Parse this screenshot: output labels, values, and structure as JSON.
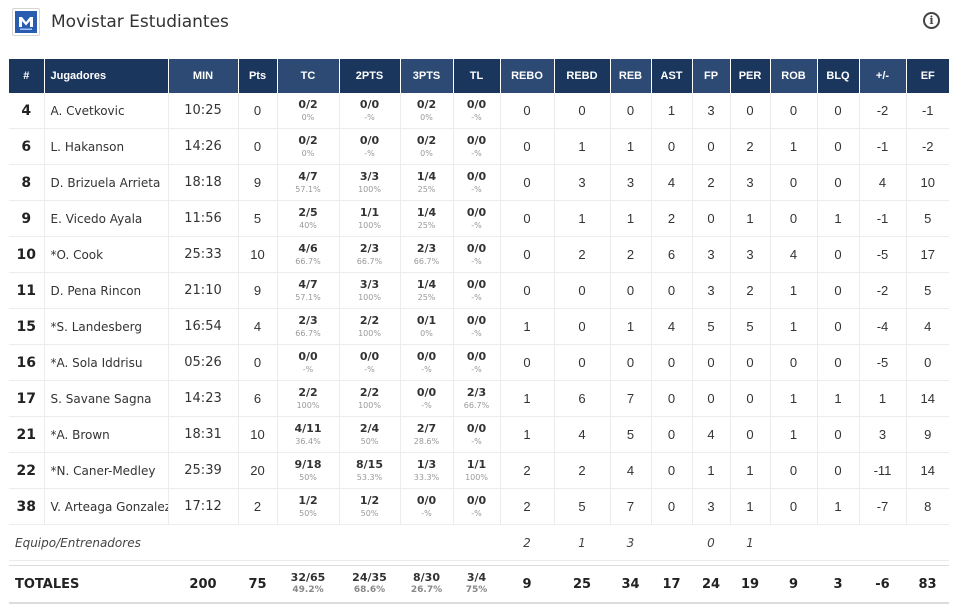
{
  "team": {
    "name": "Movistar Estudiantes",
    "logo_icon": "movistar-logo-icon",
    "info_icon": "info-icon",
    "brand_color": "#1b365d"
  },
  "columns": [
    "#",
    "Jugadores",
    "MIN",
    "Pts",
    "TC",
    "2PTS",
    "3PTS",
    "TL",
    "REBO",
    "REBD",
    "REB",
    "AST",
    "FP",
    "PER",
    "ROB",
    "BLQ",
    "+/-",
    "EF"
  ],
  "players": [
    {
      "num": "4",
      "name": "A. Cvetkovic",
      "min": "10:25",
      "pts": "0",
      "tc": {
        "m": "0/2",
        "p": "0%"
      },
      "p2": {
        "m": "0/0",
        "p": "-%"
      },
      "p3": {
        "m": "0/2",
        "p": "0%"
      },
      "tl": {
        "m": "0/0",
        "p": "-%"
      },
      "rebo": "0",
      "rebd": "0",
      "reb": "0",
      "ast": "1",
      "fp": "3",
      "per": "0",
      "rob": "0",
      "blq": "0",
      "pm": "-2",
      "ef": "-1"
    },
    {
      "num": "6",
      "name": "L. Hakanson",
      "min": "14:26",
      "pts": "0",
      "tc": {
        "m": "0/2",
        "p": "0%"
      },
      "p2": {
        "m": "0/0",
        "p": "-%"
      },
      "p3": {
        "m": "0/2",
        "p": "0%"
      },
      "tl": {
        "m": "0/0",
        "p": "-%"
      },
      "rebo": "0",
      "rebd": "1",
      "reb": "1",
      "ast": "0",
      "fp": "0",
      "per": "2",
      "rob": "1",
      "blq": "0",
      "pm": "-1",
      "ef": "-2"
    },
    {
      "num": "8",
      "name": "D. Brizuela Arrieta",
      "min": "18:18",
      "pts": "9",
      "tc": {
        "m": "4/7",
        "p": "57.1%"
      },
      "p2": {
        "m": "3/3",
        "p": "100%"
      },
      "p3": {
        "m": "1/4",
        "p": "25%"
      },
      "tl": {
        "m": "0/0",
        "p": "-%"
      },
      "rebo": "0",
      "rebd": "3",
      "reb": "3",
      "ast": "4",
      "fp": "2",
      "per": "3",
      "rob": "0",
      "blq": "0",
      "pm": "4",
      "ef": "10"
    },
    {
      "num": "9",
      "name": "E. Vicedo Ayala",
      "min": "11:56",
      "pts": "5",
      "tc": {
        "m": "2/5",
        "p": "40%"
      },
      "p2": {
        "m": "1/1",
        "p": "100%"
      },
      "p3": {
        "m": "1/4",
        "p": "25%"
      },
      "tl": {
        "m": "0/0",
        "p": "-%"
      },
      "rebo": "0",
      "rebd": "1",
      "reb": "1",
      "ast": "2",
      "fp": "0",
      "per": "1",
      "rob": "0",
      "blq": "1",
      "pm": "-1",
      "ef": "5"
    },
    {
      "num": "10",
      "name": "*O. Cook",
      "min": "25:33",
      "pts": "10",
      "tc": {
        "m": "4/6",
        "p": "66.7%"
      },
      "p2": {
        "m": "2/3",
        "p": "66.7%"
      },
      "p3": {
        "m": "2/3",
        "p": "66.7%"
      },
      "tl": {
        "m": "0/0",
        "p": "-%"
      },
      "rebo": "0",
      "rebd": "2",
      "reb": "2",
      "ast": "6",
      "fp": "3",
      "per": "3",
      "rob": "4",
      "blq": "0",
      "pm": "-5",
      "ef": "17"
    },
    {
      "num": "11",
      "name": "D. Pena Rincon",
      "min": "21:10",
      "pts": "9",
      "tc": {
        "m": "4/7",
        "p": "57.1%"
      },
      "p2": {
        "m": "3/3",
        "p": "100%"
      },
      "p3": {
        "m": "1/4",
        "p": "25%"
      },
      "tl": {
        "m": "0/0",
        "p": "-%"
      },
      "rebo": "0",
      "rebd": "0",
      "reb": "0",
      "ast": "0",
      "fp": "3",
      "per": "2",
      "rob": "1",
      "blq": "0",
      "pm": "-2",
      "ef": "5"
    },
    {
      "num": "15",
      "name": "*S. Landesberg",
      "min": "16:54",
      "pts": "4",
      "tc": {
        "m": "2/3",
        "p": "66.7%"
      },
      "p2": {
        "m": "2/2",
        "p": "100%"
      },
      "p3": {
        "m": "0/1",
        "p": "0%"
      },
      "tl": {
        "m": "0/0",
        "p": "-%"
      },
      "rebo": "1",
      "rebd": "0",
      "reb": "1",
      "ast": "4",
      "fp": "5",
      "per": "5",
      "rob": "1",
      "blq": "0",
      "pm": "-4",
      "ef": "4"
    },
    {
      "num": "16",
      "name": "*A. Sola Iddrisu",
      "min": "05:26",
      "pts": "0",
      "tc": {
        "m": "0/0",
        "p": "-%"
      },
      "p2": {
        "m": "0/0",
        "p": "-%"
      },
      "p3": {
        "m": "0/0",
        "p": "-%"
      },
      "tl": {
        "m": "0/0",
        "p": "-%"
      },
      "rebo": "0",
      "rebd": "0",
      "reb": "0",
      "ast": "0",
      "fp": "0",
      "per": "0",
      "rob": "0",
      "blq": "0",
      "pm": "-5",
      "ef": "0"
    },
    {
      "num": "17",
      "name": "S. Savane Sagna",
      "min": "14:23",
      "pts": "6",
      "tc": {
        "m": "2/2",
        "p": "100%"
      },
      "p2": {
        "m": "2/2",
        "p": "100%"
      },
      "p3": {
        "m": "0/0",
        "p": "-%"
      },
      "tl": {
        "m": "2/3",
        "p": "66.7%"
      },
      "rebo": "1",
      "rebd": "6",
      "reb": "7",
      "ast": "0",
      "fp": "0",
      "per": "0",
      "rob": "1",
      "blq": "1",
      "pm": "1",
      "ef": "14"
    },
    {
      "num": "21",
      "name": "*A. Brown",
      "min": "18:31",
      "pts": "10",
      "tc": {
        "m": "4/11",
        "p": "36.4%"
      },
      "p2": {
        "m": "2/4",
        "p": "50%"
      },
      "p3": {
        "m": "2/7",
        "p": "28.6%"
      },
      "tl": {
        "m": "0/0",
        "p": "-%"
      },
      "rebo": "1",
      "rebd": "4",
      "reb": "5",
      "ast": "0",
      "fp": "4",
      "per": "0",
      "rob": "1",
      "blq": "0",
      "pm": "3",
      "ef": "9"
    },
    {
      "num": "22",
      "name": "*N. Caner-Medley",
      "min": "25:39",
      "pts": "20",
      "tc": {
        "m": "9/18",
        "p": "50%"
      },
      "p2": {
        "m": "8/15",
        "p": "53.3%"
      },
      "p3": {
        "m": "1/3",
        "p": "33.3%"
      },
      "tl": {
        "m": "1/1",
        "p": "100%"
      },
      "rebo": "2",
      "rebd": "2",
      "reb": "4",
      "ast": "0",
      "fp": "1",
      "per": "1",
      "rob": "0",
      "blq": "0",
      "pm": "-11",
      "ef": "14"
    },
    {
      "num": "38",
      "name": "V. Arteaga Gonzalez",
      "min": "17:12",
      "pts": "2",
      "tc": {
        "m": "1/2",
        "p": "50%"
      },
      "p2": {
        "m": "1/2",
        "p": "50%"
      },
      "p3": {
        "m": "0/0",
        "p": "-%"
      },
      "tl": {
        "m": "0/0",
        "p": "-%"
      },
      "rebo": "2",
      "rebd": "5",
      "reb": "7",
      "ast": "0",
      "fp": "3",
      "per": "1",
      "rob": "0",
      "blq": "1",
      "pm": "-7",
      "ef": "8"
    }
  ],
  "team_row": {
    "label": "Equipo/Entrenadores",
    "rebo": "2",
    "rebd": "1",
    "reb": "3",
    "ast": "",
    "fp": "0",
    "per": "1"
  },
  "totals": {
    "label": "TOTALES",
    "min": "200",
    "pts": "75",
    "tc": {
      "m": "32/65",
      "p": "49.2%"
    },
    "p2": {
      "m": "24/35",
      "p": "68.6%"
    },
    "p3": {
      "m": "8/30",
      "p": "26.7%"
    },
    "tl": {
      "m": "3/4",
      "p": "75%"
    },
    "rebo": "9",
    "rebd": "25",
    "reb": "34",
    "ast": "17",
    "fp": "24",
    "per": "19",
    "rob": "9",
    "blq": "3",
    "pm": "-6",
    "ef": "83"
  }
}
